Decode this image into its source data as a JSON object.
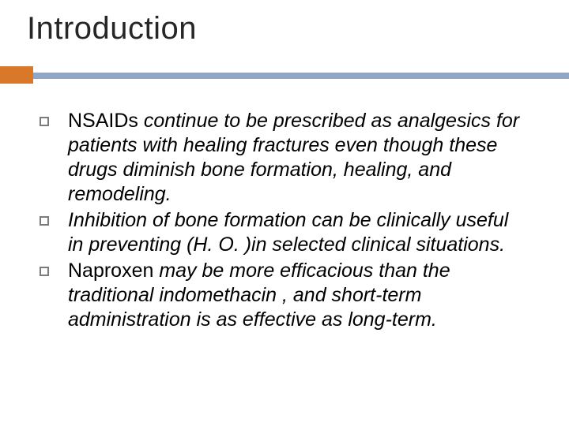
{
  "slide": {
    "title": "Introduction",
    "accent_color_orange": "#d97828",
    "accent_color_blue": "#8fa6c7",
    "title_color": "#262626",
    "bullet_border_color": "#7b7b7b",
    "background_color": "#ffffff",
    "title_fontsize": 40,
    "body_fontsize": 25,
    "bullets": [
      {
        "lead": "NSAIDs",
        "rest": " continue to be prescribed as analgesics for patients with healing fractures even though these drugs diminish bone formation, healing, and remodeling."
      },
      {
        "lead": "",
        "rest": " Inhibition of bone formation can be clinically useful in preventing (H. O. )in selected clinical situations."
      },
      {
        "lead": "Naproxen",
        "rest": " may be more efficacious than the traditional indomethacin , and short-term administration is as effective as long-term."
      }
    ]
  }
}
